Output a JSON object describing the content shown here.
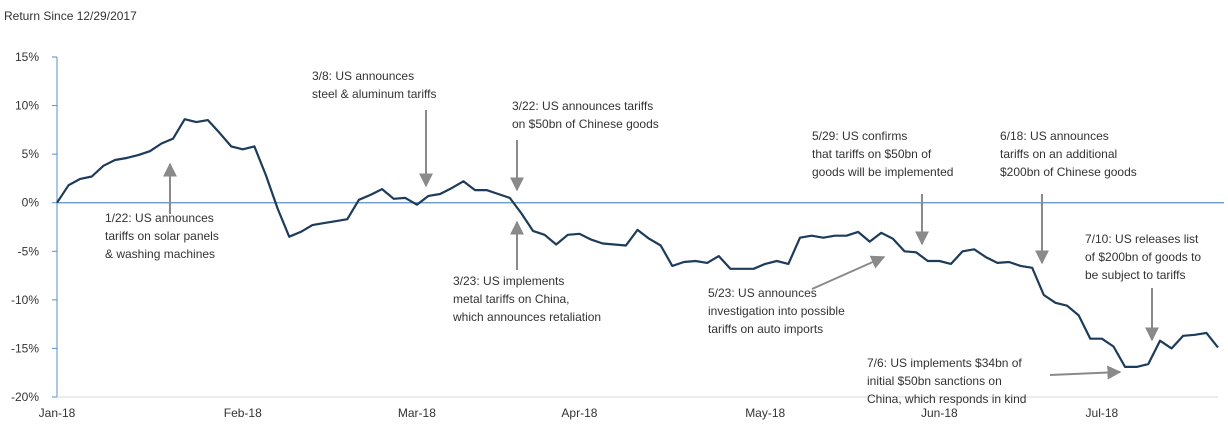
{
  "chart_data": {
    "type": "line",
    "subtitle": "Return Since 12/29/2017",
    "categories": [
      "Jan-18",
      null,
      null,
      null,
      null,
      null,
      null,
      null,
      null,
      null,
      null,
      null,
      null,
      null,
      null,
      null,
      "Feb-18",
      null,
      null,
      null,
      null,
      null,
      null,
      null,
      null,
      null,
      null,
      null,
      null,
      null,
      null,
      "Mar-18",
      null,
      null,
      null,
      null,
      null,
      null,
      null,
      null,
      null,
      null,
      null,
      null,
      null,
      "Apr-18",
      null,
      null,
      null,
      null,
      null,
      null,
      null,
      null,
      null,
      null,
      null,
      null,
      null,
      null,
      null,
      "May-18",
      null,
      null,
      null,
      null,
      null,
      null,
      null,
      null,
      null,
      null,
      null,
      null,
      null,
      null,
      "Jun-18",
      null,
      null,
      null,
      null,
      null,
      null,
      null,
      null,
      null,
      null,
      null,
      null,
      null,
      "Jul-18",
      null,
      null,
      null,
      null,
      null,
      null,
      null,
      null,
      null,
      null
    ],
    "series": [
      {
        "color": "#1d3b5a",
        "values": [
          0,
          1.8,
          2.45,
          2.7,
          3.8,
          4.4,
          4.6,
          4.9,
          5.3,
          6.1,
          6.6,
          8.6,
          8.3,
          8.5,
          7.2,
          5.8,
          5.5,
          5.8,
          2.8,
          -0.6,
          -3.5,
          -3.0,
          -2.3,
          -2.1,
          -1.9,
          -1.7,
          0.3,
          0.8,
          1.4,
          0.4,
          0.5,
          -0.2,
          0.7,
          0.9,
          1.5,
          2.2,
          1.3,
          1.3,
          0.9,
          0.5,
          -1.1,
          -2.9,
          -3.3,
          -4.3,
          -3.3,
          -3.2,
          -3.8,
          -4.2,
          -4.3,
          -4.4,
          -2.8,
          -3.7,
          -4.4,
          -6.5,
          -6.1,
          -6.0,
          -6.2,
          -5.5,
          -6.8,
          -6.8,
          -6.8,
          -6.3,
          -6.0,
          -6.3,
          -3.6,
          -3.4,
          -3.6,
          -3.4,
          -3.4,
          -3.0,
          -4.0,
          -3.1,
          -3.7,
          -5.0,
          -5.1,
          -6.0,
          -6.0,
          -6.3,
          -5.0,
          -4.8,
          -5.6,
          -6.2,
          -6.1,
          -6.5,
          -6.7,
          -9.5,
          -10.3,
          -10.6,
          -11.6,
          -14.0,
          -14.0,
          -14.8,
          -16.9,
          -16.9,
          -16.6,
          -14.2,
          -15.0,
          -13.7,
          -13.6,
          -13.4,
          -14.9
        ]
      }
    ],
    "ylim": [
      -20,
      15
    ],
    "yticks": [
      {
        "value": -20,
        "label": "-20%"
      },
      {
        "value": -15,
        "label": "-15%"
      },
      {
        "value": -10,
        "label": "-10%"
      },
      {
        "value": -5,
        "label": "-5%"
      },
      {
        "value": 0,
        "label": "0%"
      },
      {
        "value": 5,
        "label": "5%"
      },
      {
        "value": 10,
        "label": "10%"
      },
      {
        "value": 15,
        "label": "15%"
      }
    ],
    "axis_color": "#5b8fc7",
    "annotations": [
      {
        "lines": [
          "1/22: US announces",
          "tariffs on solar panels",
          "& washing machines"
        ]
      },
      {
        "lines": [
          "3/8: US announces",
          "steel & aluminum tariffs"
        ]
      },
      {
        "lines": [
          "3/22: US announces tariffs",
          "on $50bn of Chinese goods"
        ]
      },
      {
        "lines": [
          "3/23: US implements",
          "metal tariffs on China,",
          "which announces retaliation"
        ]
      },
      {
        "lines": [
          "5/23: US announces",
          "investigation into possible",
          "tariffs on auto imports"
        ]
      },
      {
        "lines": [
          "5/29: US confirms",
          "that tariffs on $50bn of",
          "goods will be implemented"
        ]
      },
      {
        "lines": [
          "6/18: US announces",
          "tariffs on an additional",
          "$200bn of Chinese goods"
        ]
      },
      {
        "lines": [
          "7/6: US implements $34bn of",
          "initial $50bn sanctions on",
          "China, which responds in kind"
        ]
      },
      {
        "lines": [
          "7/10: US releases list",
          "of $200bn of goods to",
          "be subject to tariffs"
        ]
      }
    ]
  }
}
